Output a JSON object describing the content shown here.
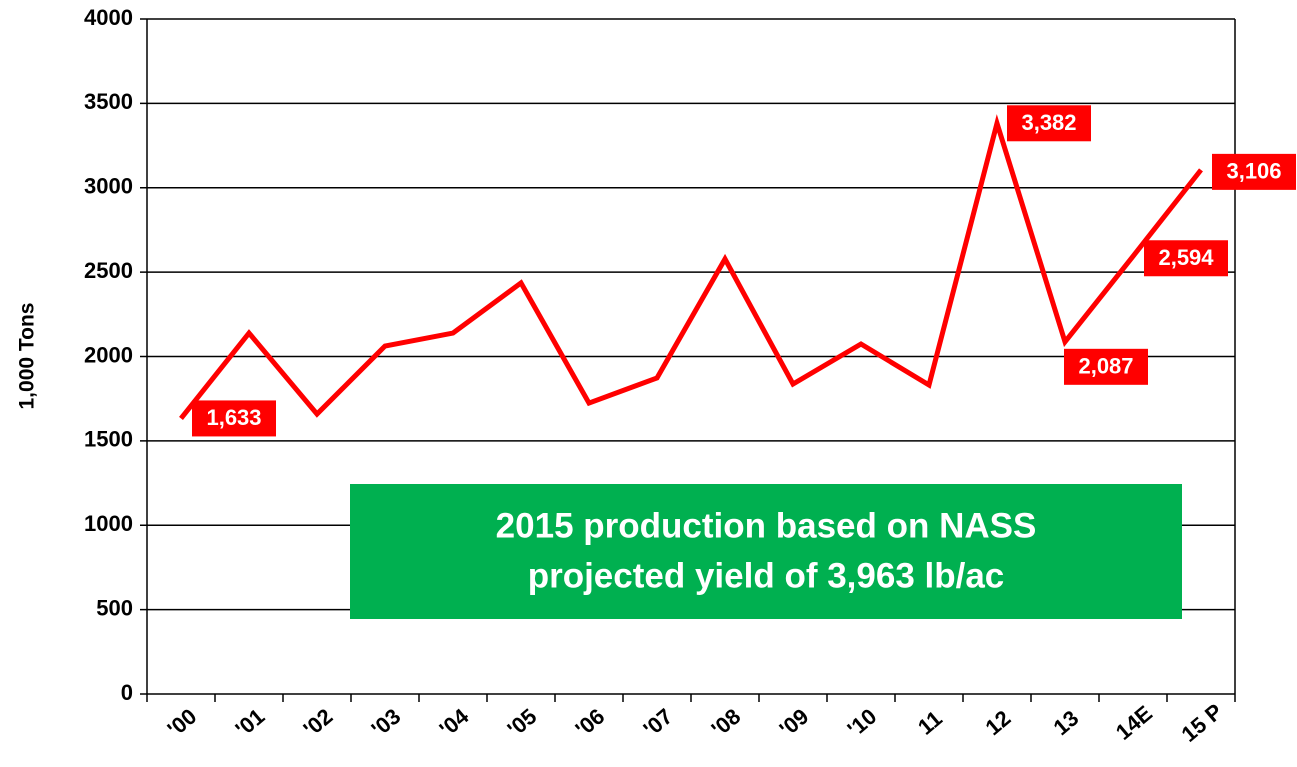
{
  "chart_data": {
    "type": "line",
    "y_label": "1,000 Tons",
    "categories": [
      "'00",
      "'01",
      "'02",
      "'03",
      "'04",
      "'05",
      "'06",
      "'07",
      "'08",
      "'09",
      "'10",
      "11",
      "12",
      "13",
      "14E",
      "15 P"
    ],
    "series": [
      {
        "color": "#ff0000",
        "values": [
          1633,
          2139,
          1659,
          2062,
          2139,
          2436,
          1724,
          1873,
          2578,
          1837,
          2074,
          1831,
          3382,
          2087,
          2594,
          3106
        ],
        "value_labels": [
          "1,633",
          null,
          null,
          null,
          null,
          null,
          null,
          null,
          null,
          null,
          null,
          null,
          "3,382",
          "2,087",
          "2,594",
          "3,106"
        ]
      }
    ],
    "ylim": [
      0,
      4000
    ],
    "yticks": [
      0,
      500,
      1000,
      1500,
      2000,
      2500,
      3000,
      3500,
      4000
    ],
    "grid": true,
    "annotation": [
      "2015 production based on NASS",
      "projected yield of 3,963 lb/ac"
    ],
    "annotation_color": "#00b050"
  }
}
